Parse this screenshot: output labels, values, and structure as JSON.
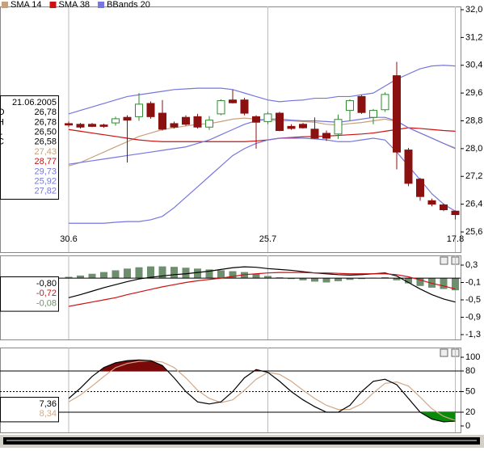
{
  "chart_data": [
    {
      "type": "candlestick",
      "categories": [
        "30.6",
        null,
        null,
        null,
        null,
        null,
        null,
        null,
        null,
        null,
        null,
        null,
        null,
        null,
        null,
        null,
        null,
        "25.7",
        null,
        null,
        null,
        null,
        null,
        null,
        null,
        null,
        null,
        null,
        null,
        null,
        null,
        null,
        null,
        "17.8"
      ],
      "open": [
        28.72,
        28.7,
        28.7,
        28.68,
        28.74,
        28.9,
        28.92,
        29.3,
        29.02,
        28.72,
        28.9,
        28.92,
        28.62,
        29.0,
        29.4,
        29.4,
        28.92,
        28.78,
        29.02,
        28.64,
        28.7,
        28.56,
        28.44,
        28.42,
        29.1,
        29.5,
        28.9,
        29.12,
        30.1,
        27.96,
        27.12,
        26.5,
        26.38,
        26.2
      ],
      "high": [
        28.78,
        28.74,
        28.74,
        28.72,
        28.92,
        28.96,
        29.6,
        29.36,
        29.4,
        28.78,
        28.96,
        29.0,
        28.94,
        29.42,
        29.7,
        29.46,
        28.96,
        29.06,
        29.06,
        28.7,
        28.74,
        28.9,
        28.52,
        28.98,
        29.42,
        29.54,
        29.14,
        29.62,
        30.5,
        28.02,
        27.16,
        26.56,
        26.42,
        26.22
      ],
      "low": [
        28.62,
        28.58,
        28.62,
        28.6,
        28.66,
        27.6,
        28.8,
        28.86,
        28.52,
        28.58,
        28.66,
        28.58,
        28.54,
        28.96,
        29.3,
        28.96,
        28.0,
        28.7,
        28.5,
        28.54,
        28.58,
        28.28,
        28.22,
        28.28,
        28.8,
        29.0,
        28.7,
        29.06,
        27.4,
        26.92,
        26.5,
        26.34,
        26.2,
        25.96
      ],
      "close": [
        28.68,
        28.62,
        28.64,
        28.64,
        28.86,
        28.82,
        29.28,
        28.92,
        28.56,
        28.62,
        28.7,
        28.62,
        28.82,
        29.38,
        29.32,
        29.02,
        28.76,
        29.0,
        28.52,
        28.58,
        28.6,
        28.3,
        28.3,
        28.84,
        29.38,
        29.04,
        29.1,
        29.56,
        27.9,
        27.0,
        26.62,
        26.4,
        26.24,
        26.1
      ],
      "up_color": "#2f8a2f",
      "down_color": "#8b1010",
      "series": [
        {
          "name": "SMA 14",
          "color": "#c8a07a",
          "values": [
            27.5,
            27.6,
            27.75,
            27.9,
            28.05,
            28.2,
            28.35,
            28.45,
            28.55,
            28.6,
            28.65,
            28.7,
            28.72,
            28.78,
            28.85,
            28.88,
            28.85,
            28.82,
            28.8,
            28.8,
            28.78,
            28.76,
            28.7,
            28.68,
            28.72,
            28.75,
            28.8,
            28.85,
            28.78,
            28.6,
            28.45,
            28.3,
            28.15,
            28.02
          ]
        },
        {
          "name": "SMA 38",
          "color": "#cc1111",
          "values": [
            28.55,
            28.5,
            28.45,
            28.4,
            28.35,
            28.3,
            28.25,
            28.22,
            28.2,
            28.2,
            28.2,
            28.2,
            28.2,
            28.2,
            28.2,
            28.2,
            28.22,
            28.25,
            28.3,
            28.32,
            28.34,
            28.35,
            28.36,
            28.38,
            28.4,
            28.42,
            28.45,
            28.5,
            28.55,
            28.6,
            28.58,
            28.55,
            28.52,
            28.5
          ]
        },
        {
          "name": "BBands 20",
          "color": "#7676e0",
          "upper": [
            29.0,
            29.1,
            29.2,
            29.3,
            29.4,
            29.5,
            29.55,
            29.6,
            29.65,
            29.7,
            29.72,
            29.74,
            29.74,
            29.74,
            29.7,
            29.6,
            29.5,
            29.4,
            29.35,
            29.38,
            29.4,
            29.45,
            29.45,
            29.5,
            29.5,
            29.55,
            29.6,
            29.8,
            30.0,
            30.15,
            30.3,
            30.38,
            30.4,
            30.38
          ],
          "middle": [
            27.55,
            27.6,
            27.65,
            27.7,
            27.75,
            27.8,
            27.85,
            27.9,
            27.95,
            28.0,
            28.05,
            28.15,
            28.25,
            28.4,
            28.55,
            28.7,
            28.8,
            28.85,
            28.85,
            28.82,
            28.8,
            28.8,
            28.78,
            28.76,
            28.8,
            28.85,
            28.9,
            28.9,
            28.8,
            28.6,
            28.45,
            28.3,
            28.15,
            28.0
          ],
          "lower": [
            25.85,
            25.85,
            25.85,
            25.85,
            25.88,
            25.9,
            25.9,
            25.95,
            26.05,
            26.3,
            26.6,
            26.9,
            27.2,
            27.5,
            27.8,
            28.0,
            28.15,
            28.25,
            28.3,
            28.3,
            28.3,
            28.28,
            28.25,
            28.2,
            28.2,
            28.25,
            28.3,
            28.25,
            27.9,
            27.5,
            27.1,
            26.7,
            26.4,
            26.2
          ]
        }
      ],
      "ylim": [
        25.6,
        32.0
      ],
      "yticks": [
        {
          "value": 32.0,
          "label": "32,0"
        },
        {
          "value": 31.2,
          "label": "31,2"
        },
        {
          "value": 30.4,
          "label": "30,4"
        },
        {
          "value": 29.6,
          "label": "29,6"
        },
        {
          "value": 28.8,
          "label": "28,8"
        },
        {
          "value": 28.0,
          "label": "28,0"
        },
        {
          "value": 27.2,
          "label": "27,2"
        },
        {
          "value": 26.4,
          "label": "26,4"
        },
        {
          "value": 25.6,
          "label": "25,6"
        }
      ],
      "data_window": {
        "date": "21.06.2005",
        "rows": [
          {
            "label": "O",
            "value": "26,78",
            "color": "#000000"
          },
          {
            "label": "H",
            "value": "26,78",
            "color": "#000000"
          },
          {
            "label": "L",
            "value": "26,50",
            "color": "#000000"
          },
          {
            "label": "C",
            "value": "26,58",
            "color": "#000000"
          },
          {
            "value": "27,43",
            "color": "#c8a07a"
          },
          {
            "value": "28,77",
            "color": "#cc1111"
          },
          {
            "value": "29,73",
            "color": "#7676e0"
          },
          {
            "value": "25,92",
            "color": "#7676e0"
          },
          {
            "value": "27,82",
            "color": "#7676e0"
          }
        ]
      }
    },
    {
      "type": "macd",
      "histogram": {
        "color": "#6e8f6e",
        "values": [
          0.03,
          0.06,
          0.1,
          0.14,
          0.18,
          0.22,
          0.25,
          0.27,
          0.27,
          0.26,
          0.24,
          0.22,
          0.2,
          0.18,
          0.16,
          0.14,
          0.1,
          0.05,
          0.02,
          -0.02,
          -0.05,
          -0.08,
          -0.1,
          -0.07,
          -0.04,
          -0.02,
          0.01,
          0.02,
          -0.05,
          -0.12,
          -0.18,
          -0.22,
          -0.25,
          -0.28
        ]
      },
      "series": [
        {
          "color": "#000000",
          "values": [
            -0.45,
            -0.38,
            -0.3,
            -0.22,
            -0.15,
            -0.08,
            -0.02,
            0.02,
            0.05,
            0.08,
            0.1,
            0.13,
            0.16,
            0.2,
            0.24,
            0.26,
            0.25,
            0.22,
            0.2,
            0.18,
            0.15,
            0.12,
            0.1,
            0.08,
            0.07,
            0.08,
            0.1,
            0.12,
            0.05,
            -0.1,
            -0.25,
            -0.38,
            -0.48,
            -0.55
          ]
        },
        {
          "color": "#cc1111",
          "values": [
            -0.65,
            -0.6,
            -0.55,
            -0.5,
            -0.45,
            -0.38,
            -0.32,
            -0.26,
            -0.2,
            -0.15,
            -0.1,
            -0.06,
            -0.03,
            0.0,
            0.04,
            0.08,
            0.1,
            0.12,
            0.13,
            0.13,
            0.13,
            0.12,
            0.12,
            0.11,
            0.1,
            0.1,
            0.1,
            0.1,
            0.08,
            0.03,
            -0.04,
            -0.12,
            -0.18,
            -0.25
          ]
        }
      ],
      "ylim": [
        -1.3,
        0.3
      ],
      "yticks": [
        {
          "value": 0.3,
          "label": "0,3"
        },
        {
          "value": -0.1,
          "label": "-0,1"
        },
        {
          "value": -0.5,
          "label": "-0,5"
        },
        {
          "value": -0.9,
          "label": "-0,9"
        },
        {
          "value": -1.3,
          "label": "-1,3"
        }
      ],
      "data_window": {
        "rows": [
          {
            "value": "-0,80",
            "color": "#000000"
          },
          {
            "value": "-0,72",
            "color": "#cc1111"
          },
          {
            "value": "-0,08",
            "color": "#6e8f6e"
          }
        ]
      }
    },
    {
      "type": "stochastic",
      "series": [
        {
          "color": "#000000",
          "values": [
            40,
            55,
            72,
            85,
            92,
            95,
            96,
            95,
            88,
            70,
            50,
            35,
            32,
            35,
            50,
            70,
            82,
            78,
            65,
            50,
            38,
            28,
            20,
            20,
            30,
            50,
            65,
            68,
            60,
            40,
            20,
            10,
            6,
            7
          ]
        },
        {
          "color": "#d0a888",
          "values": [
            35,
            45,
            58,
            72,
            85,
            91,
            94,
            95,
            93,
            85,
            70,
            52,
            40,
            34,
            38,
            52,
            68,
            78,
            75,
            65,
            52,
            40,
            30,
            24,
            24,
            32,
            48,
            62,
            64,
            58,
            42,
            25,
            14,
            8
          ]
        }
      ],
      "reference_lines": [
        {
          "value": 80
        },
        {
          "value": 50,
          "dashed": true
        },
        {
          "value": 20
        }
      ],
      "overbought_fill": "#7a0a0a",
      "oversold_fill": "#0a8a0a",
      "ylim": [
        0,
        100
      ],
      "yticks": [
        100,
        80,
        50,
        20,
        0
      ],
      "data_window": {
        "rows": [
          {
            "value": "7,36",
            "color": "#000000"
          },
          {
            "value": "8,34",
            "color": "#d0a888"
          }
        ]
      }
    }
  ]
}
